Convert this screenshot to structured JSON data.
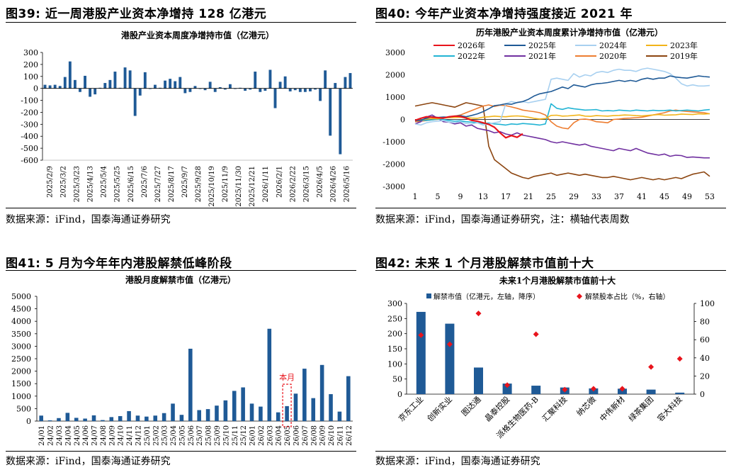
{
  "figures": [
    {
      "title": "图39:  近一周港股产业资本净增持 128 亿港元",
      "source": "数据来源：iFind，国泰海通证券研究"
    },
    {
      "title": "图40:  今年产业资本净增持强度接近 2021 年",
      "source": "数据来源：iFind，国泰海通证券研究，注：横轴代表周数"
    },
    {
      "title": "图41:  5 月为今年年内港股解禁低峰阶段",
      "source": "数据来源：iFind，国泰海通证券研究"
    },
    {
      "title": "图42:  未来 1 个月港股解禁市值前十大",
      "source": "数据来源：iFind，国泰海通证券研究"
    }
  ],
  "chart_data": [
    {
      "type": "bar",
      "title": "港股产业资本周度净增持市值（亿港元）",
      "color": "#1f5a96",
      "ylim": [
        -600,
        300
      ],
      "yticks": [
        -600,
        -500,
        -400,
        -300,
        -200,
        -100,
        0,
        100,
        200,
        300
      ],
      "xtick_labels": [
        "2025/2/9",
        "2025/3/2",
        "2025/3/23",
        "2025/4/13",
        "2025/5/4",
        "2025/5/25",
        "2025/6/15",
        "2025/7/6",
        "2025/7/27",
        "2025/8/17",
        "2025/9/7",
        "2025/9/28",
        "2025/10/19",
        "2025/11/9",
        "2025/11/30",
        "2025/12/21",
        "2026/1/11",
        "2026/2/1",
        "2026/2/22",
        "2026/3/15",
        "2026/4/5",
        "2026/4/26",
        "2026/5/16"
      ],
      "values": [
        30,
        25,
        30,
        20,
        95,
        225,
        70,
        -30,
        105,
        -70,
        -50,
        5,
        45,
        70,
        140,
        5,
        175,
        150,
        -230,
        -60,
        135,
        -5,
        30,
        5,
        65,
        80,
        60,
        95,
        -40,
        -30,
        20,
        -5,
        -15,
        55,
        -30,
        10,
        -10,
        35,
        -5,
        5,
        -20,
        -10,
        140,
        -30,
        -20,
        155,
        -165,
        55,
        100,
        -25,
        -15,
        -30,
        -30,
        -25,
        -10,
        -105,
        150,
        -395,
        45,
        -550,
        95,
        128
      ]
    },
    {
      "type": "line",
      "title": "历年港股产业资本周度累计净增持市值（亿港元）",
      "xticks": [
        1,
        5,
        9,
        13,
        17,
        21,
        25,
        29,
        33,
        37,
        41,
        45,
        49,
        53
      ],
      "xlim": [
        1,
        53
      ],
      "ylim": [
        -3000,
        3000
      ],
      "yticks": [
        -3000,
        -2000,
        -1000,
        0,
        1000,
        2000,
        3000
      ],
      "legend_order": [
        "2026年",
        "2025年",
        "2024年",
        "2023年",
        "2022年",
        "2021年",
        "2020年",
        "2019年"
      ],
      "series": [
        {
          "name": "2026年",
          "color": "#e8141c",
          "values": [
            -40,
            50,
            120,
            100,
            80,
            60,
            120,
            150,
            130,
            60,
            -40,
            -80,
            -150,
            -220,
            -350,
            -600,
            -820,
            -720,
            -800,
            -640
          ]
        },
        {
          "name": "2025年",
          "color": "#1f5a96",
          "values": [
            -60,
            -30,
            50,
            120,
            90,
            110,
            100,
            150,
            170,
            120,
            180,
            250,
            350,
            480,
            620,
            650,
            700,
            680,
            760,
            800,
            900,
            1050,
            1150,
            1200,
            1250,
            1350,
            1450,
            1380,
            1550,
            1500,
            1450,
            1550,
            1600,
            1620,
            1650,
            1700,
            1750,
            1700,
            1750,
            1700,
            1800,
            1850,
            1800,
            1850,
            1850,
            1950,
            1900,
            1870,
            1850,
            1900,
            1950,
            1920,
            1900
          ]
        },
        {
          "name": "2024年",
          "color": "#a8d0f0",
          "values": [
            -200,
            -250,
            -150,
            -100,
            -80,
            -50,
            -120,
            -150,
            -100,
            -180,
            -200,
            -150,
            -250,
            -200,
            -150,
            -100,
            700,
            800,
            750,
            800,
            750,
            800,
            850,
            900,
            1800,
            1850,
            1800,
            1750,
            2050,
            1900,
            2000,
            1950,
            2100,
            2150,
            2100,
            2200,
            2250,
            2200,
            2200,
            2150,
            2250,
            2300,
            2250,
            2200,
            2150,
            2050,
            1850,
            1600,
            1500,
            1550,
            1500,
            1500,
            1520
          ]
        },
        {
          "name": "2023年",
          "color": "#f2b419",
          "values": [
            -40,
            -20,
            20,
            40,
            30,
            60,
            80,
            90,
            100,
            80,
            60,
            50,
            100,
            120,
            150,
            130,
            120,
            150,
            160,
            140,
            100,
            50,
            20,
            40,
            180,
            190,
            150,
            160,
            180,
            200,
            150,
            140,
            170,
            160,
            150,
            170,
            180,
            200,
            190,
            170,
            160,
            180,
            200,
            220,
            190,
            200,
            210,
            240,
            230,
            220,
            250,
            240,
            260
          ]
        },
        {
          "name": "2022年",
          "color": "#22b4d4",
          "values": [
            -50,
            -30,
            -40,
            -20,
            10,
            0,
            -50,
            -80,
            -60,
            -100,
            -120,
            -150,
            -180,
            -160,
            -200,
            -220,
            -250,
            -200,
            -220,
            -180,
            -200,
            -220,
            -250,
            -200,
            700,
            500,
            450,
            520,
            480,
            450,
            420,
            430,
            440,
            380,
            400,
            380,
            420,
            400,
            380,
            420,
            400,
            380,
            410,
            390,
            400,
            420,
            380,
            400,
            420,
            400,
            380,
            420,
            440
          ]
        },
        {
          "name": "2021年",
          "color": "#7030a0",
          "values": [
            -200,
            -100,
            100,
            200,
            50,
            -100,
            -120,
            -200,
            -150,
            -300,
            -250,
            -400,
            -450,
            -500,
            -600,
            -550,
            -650,
            -700,
            -600,
            -700,
            -750,
            -800,
            -850,
            -900,
            -1000,
            -1050,
            -1000,
            -1050,
            -1100,
            -1150,
            -1100,
            -1200,
            -1250,
            -1300,
            -1350,
            -1400,
            -1300,
            -1350,
            -1400,
            -1300,
            -1400,
            -1500,
            -1550,
            -1600,
            -1550,
            -1650,
            -1600,
            -1620,
            -1700,
            -1680,
            -1700,
            -1720,
            -1720
          ]
        },
        {
          "name": "2020年",
          "color": "#ed7d31",
          "values": [
            -100,
            -80,
            -50,
            -20,
            0,
            50,
            100,
            150,
            200,
            300,
            400,
            500,
            600,
            650,
            580,
            640,
            620,
            560,
            500,
            420,
            380,
            350,
            300,
            200,
            -100,
            -300,
            -380,
            -420,
            -150,
            0,
            20,
            -20,
            -100,
            -120,
            -150,
            0,
            20,
            50,
            60,
            80,
            100,
            150,
            200,
            250,
            300,
            380,
            420,
            380,
            360,
            340,
            320,
            300,
            250
          ]
        },
        {
          "name": "2019年",
          "color": "#8c4510",
          "values": [
            600,
            650,
            700,
            750,
            700,
            650,
            600,
            550,
            650,
            750,
            700,
            650,
            600,
            -1200,
            -1800,
            -2000,
            -2200,
            -2400,
            -2500,
            -2600,
            -2650,
            -2550,
            -2500,
            -2450,
            -2400,
            -2500,
            -2450,
            -2400,
            -2450,
            -2500,
            -2450,
            -2500,
            -2550,
            -2600,
            -2600,
            -2550,
            -2600,
            -2650,
            -2700,
            -2650,
            -2600,
            -2650,
            -2700,
            -2650,
            -2700,
            -2650,
            -2600,
            -2650,
            -2550,
            -2450,
            -2400,
            -2350,
            -2550
          ]
        }
      ]
    },
    {
      "type": "bar",
      "title": "港股月度解禁市值（亿港元）",
      "color": "#1f5a96",
      "ylim": [
        0,
        5000
      ],
      "yticks": [
        0,
        500,
        1000,
        1500,
        2000,
        2500,
        3000,
        3500,
        4000,
        4500,
        5000
      ],
      "categories": [
        "24/01",
        "24/02",
        "24/03",
        "24/04",
        "24/05",
        "24/06",
        "24/07",
        "24/08",
        "24/09",
        "24/10",
        "24/11",
        "24/12",
        "25/01",
        "25/02",
        "25/03",
        "25/04",
        "25/05",
        "25/06",
        "25/07",
        "25/08",
        "25/09",
        "25/10",
        "25/11",
        "25/12",
        "26/01",
        "26/02",
        "26/03",
        "26/04",
        "26/05",
        "26/06",
        "26/07",
        "26/08",
        "26/09",
        "26/10",
        "26/11",
        "26/12"
      ],
      "values": [
        220,
        30,
        120,
        330,
        130,
        100,
        230,
        40,
        160,
        200,
        400,
        220,
        180,
        220,
        320,
        700,
        250,
        2900,
        440,
        480,
        620,
        830,
        1210,
        1350,
        700,
        580,
        3700,
        350,
        600,
        1100,
        2100,
        920,
        2250,
        1080,
        380,
        1800
      ],
      "annotation": {
        "text": "本月",
        "category": "26/05"
      }
    },
    {
      "type": "bar",
      "title": "未来1个月港股解禁市值前十大",
      "categories": [
        "京东工业",
        "创新实业",
        "图达通",
        "晶泰控股",
        "派格生物医药-B",
        "汇聚科技",
        "纳芯微",
        "中伟新材",
        "绿茶集团",
        "容大科技"
      ],
      "ylim": [
        0,
        300
      ],
      "yticks": [
        0,
        50,
        100,
        150,
        200,
        250,
        300
      ],
      "y2lim": [
        0,
        100
      ],
      "y2ticks": [
        0,
        20,
        40,
        60,
        80,
        100
      ],
      "series": [
        {
          "name": "解禁市值（亿港元，左轴，降序）",
          "color": "#1f5a96",
          "values": [
            272,
            233,
            88,
            35,
            28,
            22,
            19,
            18,
            15,
            5
          ]
        },
        {
          "name": "解禁股本占比（%，右轴）",
          "color": "#e8141c",
          "values": [
            65,
            55,
            89,
            10,
            66,
            5,
            6,
            6,
            30,
            39
          ]
        }
      ]
    }
  ]
}
